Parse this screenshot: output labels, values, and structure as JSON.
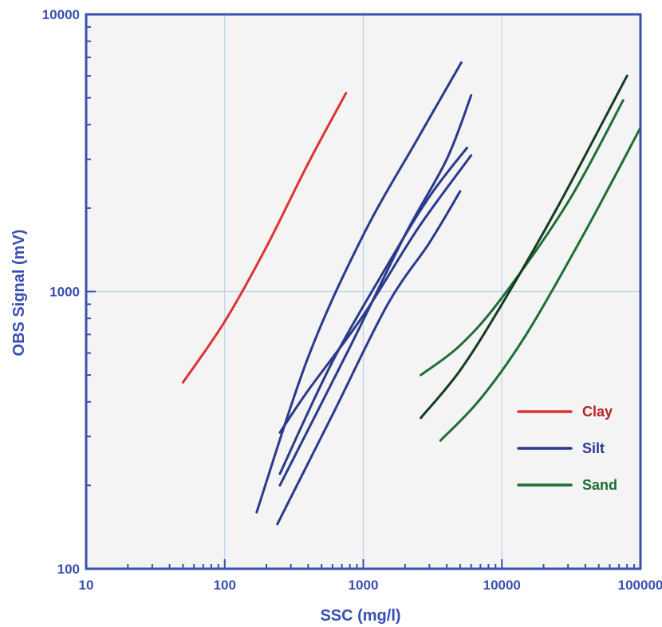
{
  "chart_data": {
    "type": "line",
    "xlabel": "SSC (mg/l)",
    "ylabel": "OBS Signal (mV)",
    "xscale": "log",
    "yscale": "log",
    "xlim": [
      10,
      100000
    ],
    "ylim": [
      100,
      10000
    ],
    "x_ticks": [
      10,
      100,
      1000,
      10000,
      100000
    ],
    "x_tick_labels": [
      "10",
      "100",
      "1000",
      "10000",
      "100000"
    ],
    "y_ticks": [
      100,
      1000,
      10000
    ],
    "y_tick_labels": [
      "100",
      "1000",
      "10000"
    ],
    "grid": true,
    "legend_position": "right",
    "colors": {
      "axis": "#3a4fb0",
      "grid": "#b9d3ec",
      "plot_background": "#f4f4f4",
      "clay": "#dd3333",
      "silt": "#2a3a8c",
      "sand": "#1f6e34",
      "sand_dark": "#143c20"
    },
    "legend": [
      {
        "label": "Clay",
        "color": "#dd3333",
        "label_color": "#b52323"
      },
      {
        "label": "Silt",
        "color": "#2a3a8c",
        "label_color": "#2a3a8c"
      },
      {
        "label": "Sand",
        "color": "#1f6e34",
        "label_color": "#1f6e34"
      }
    ],
    "series": [
      {
        "group": "Clay",
        "color": "#dd3333",
        "points": [
          [
            50,
            470
          ],
          [
            100,
            780
          ],
          [
            200,
            1450
          ],
          [
            400,
            2900
          ],
          [
            750,
            5200
          ]
        ]
      },
      {
        "group": "Silt",
        "color": "#2a3a8c",
        "points": [
          [
            170,
            160
          ],
          [
            400,
            580
          ],
          [
            1000,
            1600
          ],
          [
            2500,
            3600
          ],
          [
            5100,
            6700
          ]
        ]
      },
      {
        "group": "Silt",
        "color": "#2a3a8c",
        "points": [
          [
            240,
            145
          ],
          [
            600,
            360
          ],
          [
            1500,
            900
          ],
          [
            3000,
            1500
          ],
          [
            5000,
            2300
          ]
        ]
      },
      {
        "group": "Silt",
        "color": "#2a3a8c",
        "points": [
          [
            250,
            200
          ],
          [
            800,
            630
          ],
          [
            2000,
            1600
          ],
          [
            4000,
            3000
          ],
          [
            6000,
            5100
          ]
        ]
      },
      {
        "group": "Silt",
        "color": "#2a3a8c",
        "points": [
          [
            250,
            220
          ],
          [
            600,
            560
          ],
          [
            1500,
            1250
          ],
          [
            3000,
            2200
          ],
          [
            5600,
            3300
          ]
        ]
      },
      {
        "group": "Silt",
        "color": "#2a3a8c",
        "points": [
          [
            250,
            310
          ],
          [
            400,
            440
          ],
          [
            1000,
            820
          ],
          [
            2500,
            1700
          ],
          [
            6000,
            3100
          ]
        ]
      },
      {
        "group": "Sand",
        "color": "#1f6e34",
        "points": [
          [
            2600,
            500
          ],
          [
            5000,
            640
          ],
          [
            10000,
            950
          ],
          [
            30000,
            2100
          ],
          [
            75000,
            4900
          ]
        ]
      },
      {
        "group": "Sand",
        "color": "#143c20",
        "points": [
          [
            2600,
            350
          ],
          [
            5000,
            520
          ],
          [
            10000,
            900
          ],
          [
            25000,
            2000
          ],
          [
            80000,
            6000
          ]
        ]
      },
      {
        "group": "Sand",
        "color": "#1f6e34",
        "points": [
          [
            3600,
            290
          ],
          [
            7000,
            410
          ],
          [
            15000,
            700
          ],
          [
            40000,
            1650
          ],
          [
            100000,
            3900
          ]
        ]
      }
    ]
  }
}
